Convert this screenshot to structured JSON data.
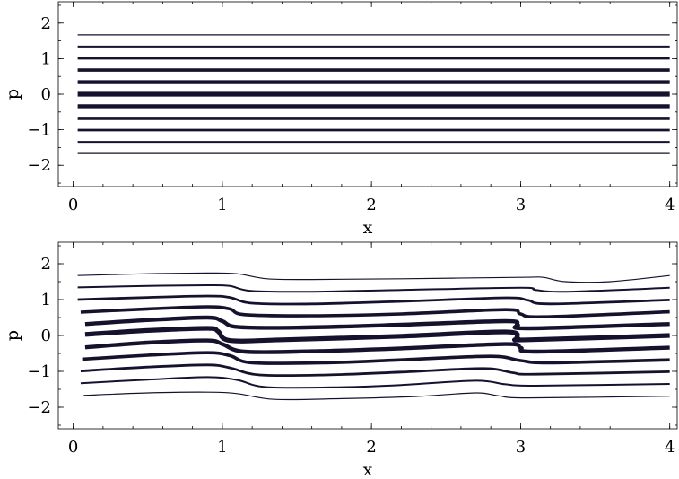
{
  "chart_data": [
    {
      "type": "line",
      "title": "",
      "xlabel": "x",
      "ylabel": "p",
      "xlim": [
        -0.1,
        4.05
      ],
      "ylim": [
        -2.6,
        2.6
      ],
      "xticks": [
        "0",
        "1",
        "2",
        "3",
        "4"
      ],
      "yticks": [
        "2",
        "1",
        "0",
        "−1",
        "−2"
      ],
      "xtick_values": [
        0,
        1,
        2,
        3,
        4
      ],
      "ytick_values": [
        2,
        1,
        0,
        -1,
        -2
      ],
      "grid": false,
      "legend": "none",
      "line_color": "#16122e",
      "series": [
        {
          "points": [
            [
              0.03,
              1.67
            ],
            [
              4,
              1.67
            ]
          ]
        },
        {
          "points": [
            [
              0.03,
              1.34
            ],
            [
              4,
              1.34
            ]
          ]
        },
        {
          "points": [
            [
              0.03,
              1.01
            ],
            [
              4,
              1.01
            ]
          ]
        },
        {
          "points": [
            [
              0.03,
              0.68
            ],
            [
              4,
              0.68
            ]
          ]
        },
        {
          "points": [
            [
              0.03,
              0.34
            ],
            [
              4,
              0.34
            ]
          ]
        },
        {
          "points": [
            [
              0.03,
              0.0
            ],
            [
              4,
              0.0
            ]
          ]
        },
        {
          "points": [
            [
              0.03,
              -0.34
            ],
            [
              4,
              -0.34
            ]
          ]
        },
        {
          "points": [
            [
              0.03,
              -0.68
            ],
            [
              4,
              -0.68
            ]
          ]
        },
        {
          "points": [
            [
              0.03,
              -1.01
            ],
            [
              4,
              -1.01
            ]
          ]
        },
        {
          "points": [
            [
              0.03,
              -1.34
            ],
            [
              4,
              -1.34
            ]
          ]
        },
        {
          "points": [
            [
              0.03,
              -1.67
            ],
            [
              4,
              -1.67
            ]
          ]
        }
      ]
    },
    {
      "type": "line",
      "title": "",
      "xlabel": "x",
      "ylabel": "p",
      "xlim": [
        -0.1,
        4.05
      ],
      "ylim": [
        -2.6,
        2.6
      ],
      "xticks": [
        "0",
        "1",
        "2",
        "3",
        "4"
      ],
      "yticks": [
        "2",
        "1",
        "0",
        "−1",
        "−2"
      ],
      "xtick_values": [
        0,
        1,
        2,
        3,
        4
      ],
      "ytick_values": [
        2,
        1,
        0,
        -1,
        -2
      ],
      "grid": false,
      "legend": "none",
      "line_color": "#16122e",
      "series": [
        {
          "points": [
            [
              0.03,
              1.67
            ],
            [
              0.5,
              1.72
            ],
            [
              0.9,
              1.74
            ],
            [
              1.1,
              1.72
            ],
            [
              1.3,
              1.58
            ],
            [
              1.6,
              1.56
            ],
            [
              2.2,
              1.58
            ],
            [
              3.0,
              1.62
            ],
            [
              3.15,
              1.62
            ],
            [
              3.3,
              1.5
            ],
            [
              3.6,
              1.5
            ],
            [
              4,
              1.67
            ]
          ]
        },
        {
          "points": [
            [
              0.03,
              1.34
            ],
            [
              0.5,
              1.38
            ],
            [
              0.9,
              1.4
            ],
            [
              1.05,
              1.38
            ],
            [
              1.2,
              1.24
            ],
            [
              1.6,
              1.22
            ],
            [
              2.2,
              1.27
            ],
            [
              3.0,
              1.33
            ],
            [
              3.1,
              1.27
            ],
            [
              3.3,
              1.22
            ],
            [
              4,
              1.33
            ]
          ]
        },
        {
          "points": [
            [
              0.03,
              1.0
            ],
            [
              0.5,
              1.06
            ],
            [
              0.9,
              1.1
            ],
            [
              1.05,
              1.06
            ],
            [
              1.2,
              0.9
            ],
            [
              1.6,
              0.88
            ],
            [
              2.2,
              0.95
            ],
            [
              2.9,
              1.05
            ],
            [
              3.05,
              0.98
            ],
            [
              3.2,
              0.88
            ],
            [
              4,
              0.99
            ]
          ]
        },
        {
          "points": [
            [
              0.05,
              0.65
            ],
            [
              0.5,
              0.74
            ],
            [
              0.9,
              0.8
            ],
            [
              1.05,
              0.74
            ],
            [
              1.15,
              0.58
            ],
            [
              1.6,
              0.55
            ],
            [
              2.2,
              0.6
            ],
            [
              2.9,
              0.72
            ],
            [
              3.0,
              0.6
            ],
            [
              3.15,
              0.52
            ],
            [
              4,
              0.66
            ]
          ]
        },
        {
          "points": [
            [
              0.08,
              0.32
            ],
            [
              0.5,
              0.43
            ],
            [
              0.9,
              0.5
            ],
            [
              1.0,
              0.4
            ],
            [
              1.1,
              0.24
            ],
            [
              1.5,
              0.22
            ],
            [
              2.2,
              0.3
            ],
            [
              2.9,
              0.4
            ],
            [
              2.98,
              0.3
            ],
            [
              3.05,
              0.2
            ],
            [
              4,
              0.32
            ]
          ]
        },
        {
          "points": [
            [
              0.08,
              0.03
            ],
            [
              0.5,
              0.14
            ],
            [
              0.9,
              0.2
            ],
            [
              0.97,
              0.12
            ],
            [
              1.05,
              -0.14
            ],
            [
              1.4,
              -0.12
            ],
            [
              2.2,
              -0.02
            ],
            [
              2.9,
              0.1
            ],
            [
              2.98,
              -0.08
            ],
            [
              3.05,
              -0.12
            ],
            [
              4,
              0.0
            ]
          ]
        },
        {
          "points": [
            [
              0.08,
              -0.33
            ],
            [
              0.5,
              -0.2
            ],
            [
              0.9,
              -0.14
            ],
            [
              1.0,
              -0.24
            ],
            [
              1.15,
              -0.45
            ],
            [
              1.6,
              -0.44
            ],
            [
              2.2,
              -0.36
            ],
            [
              2.9,
              -0.24
            ],
            [
              3.0,
              -0.34
            ],
            [
              3.1,
              -0.45
            ],
            [
              4,
              -0.34
            ]
          ]
        },
        {
          "points": [
            [
              0.06,
              -0.66
            ],
            [
              0.5,
              -0.55
            ],
            [
              0.9,
              -0.48
            ],
            [
              1.05,
              -0.56
            ],
            [
              1.2,
              -0.76
            ],
            [
              1.7,
              -0.76
            ],
            [
              2.2,
              -0.68
            ],
            [
              2.8,
              -0.58
            ],
            [
              3.0,
              -0.7
            ],
            [
              3.2,
              -0.76
            ],
            [
              4,
              -0.68
            ]
          ]
        },
        {
          "points": [
            [
              0.05,
              -0.99
            ],
            [
              0.5,
              -0.88
            ],
            [
              0.9,
              -0.82
            ],
            [
              1.05,
              -0.9
            ],
            [
              1.25,
              -1.1
            ],
            [
              1.7,
              -1.1
            ],
            [
              2.2,
              -1.02
            ],
            [
              2.75,
              -0.92
            ],
            [
              2.95,
              -1.04
            ],
            [
              3.1,
              -1.08
            ],
            [
              4,
              -1.01
            ]
          ]
        },
        {
          "points": [
            [
              0.05,
              -1.33
            ],
            [
              0.5,
              -1.23
            ],
            [
              0.9,
              -1.16
            ],
            [
              1.1,
              -1.24
            ],
            [
              1.3,
              -1.44
            ],
            [
              1.8,
              -1.44
            ],
            [
              2.2,
              -1.38
            ],
            [
              2.7,
              -1.26
            ],
            [
              2.9,
              -1.36
            ],
            [
              3.1,
              -1.4
            ],
            [
              4,
              -1.35
            ]
          ]
        },
        {
          "points": [
            [
              0.07,
              -1.67
            ],
            [
              0.5,
              -1.6
            ],
            [
              0.9,
              -1.58
            ],
            [
              1.1,
              -1.62
            ],
            [
              1.35,
              -1.78
            ],
            [
              1.8,
              -1.76
            ],
            [
              2.3,
              -1.7
            ],
            [
              2.7,
              -1.6
            ],
            [
              2.85,
              -1.68
            ],
            [
              3.05,
              -1.74
            ],
            [
              4,
              -1.69
            ]
          ]
        }
      ]
    }
  ]
}
